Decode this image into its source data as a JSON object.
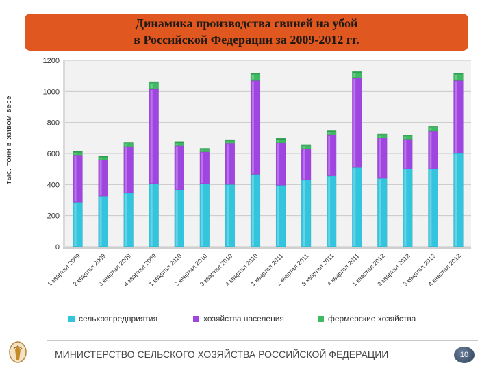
{
  "title_line1": "Динамика производства свиней на убой",
  "title_line2": "в Российской Федерации за 2009-2012 гг.",
  "footer": "МИНИСТЕРСТВО СЕЛЬСКОГО ХОЗЯЙСТВА РОССИЙСКОЙ ФЕДЕРАЦИИ",
  "page_number": "10",
  "colors": {
    "title_bg": "#e0571f",
    "agro": "#33c4de",
    "households": "#a046e0",
    "farmers": "#3dba62"
  },
  "chart_data": {
    "type": "bar",
    "stacked": true,
    "title": "Динамика производства свиней на убой в Российской Федерации за 2009-2012 гг.",
    "xlabel": "",
    "ylabel": "тыс. тонн в живом весе",
    "ylim": [
      0,
      1200
    ],
    "yticks": [
      0,
      200,
      400,
      600,
      800,
      1000,
      1200
    ],
    "grid": true,
    "legend_position": "bottom",
    "categories": [
      "1 квартал 2009",
      "2 квартал 2009",
      "3 квартал 2009",
      "4 квартал 2009",
      "1 квартал 2010",
      "2 квартал 2010",
      "3 квартал 2010",
      "4 квартал 2010",
      "1 квартал 2011",
      "2 квартал 2011",
      "3 квартал 2011",
      "4 квартал 2011",
      "1 квартал 2012",
      "2 квартал 2012",
      "3 квартал 2012",
      "4 квартал 2012"
    ],
    "series": [
      {
        "name": "сельхозпредприятия",
        "values": [
          285,
          325,
          345,
          405,
          365,
          405,
          400,
          465,
          395,
          430,
          455,
          510,
          440,
          500,
          500,
          600
        ]
      },
      {
        "name": "хозяйства населения",
        "values": [
          305,
          235,
          300,
          610,
          285,
          205,
          265,
          605,
          275,
          200,
          265,
          575,
          260,
          190,
          245,
          470
        ]
      },
      {
        "name": "фермерские хозяйства",
        "values": [
          15,
          15,
          20,
          40,
          18,
          15,
          15,
          40,
          18,
          20,
          20,
          35,
          20,
          20,
          22,
          40
        ]
      }
    ]
  }
}
